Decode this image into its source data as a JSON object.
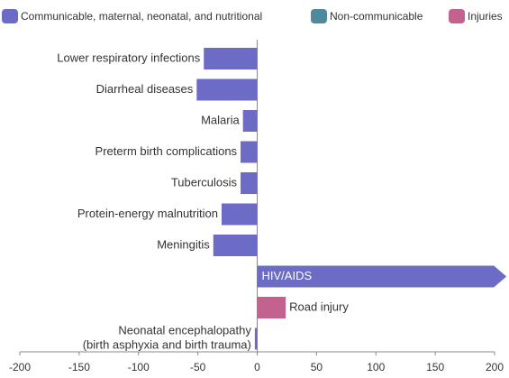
{
  "chart_data": {
    "type": "bar",
    "orientation": "horizontal",
    "categories": [
      "Lower respiratory infections",
      "Diarrheal diseases",
      "Malaria",
      "Preterm birth complications",
      "Tuberculosis",
      "Protein-energy malnutrition",
      "Meningitis",
      "HIV/AIDS",
      "Road injury",
      [
        "Neonatal encephalopathy",
        "(birth asphyxia and birth trauma)"
      ]
    ],
    "series": [
      {
        "name": "Communicable, maternal, neonatal, and nutritional",
        "color": "#6c6cc6",
        "values": [
          -45,
          -51,
          -12,
          -14,
          -14,
          -30,
          -37,
          210,
          null,
          -2
        ]
      },
      {
        "name": "Non-communicable",
        "color": "#4f8a9c",
        "values": [
          null,
          null,
          null,
          null,
          null,
          null,
          null,
          null,
          null,
          null
        ]
      },
      {
        "name": "Injuries",
        "color": "#c4628f",
        "values": [
          null,
          null,
          null,
          null,
          null,
          null,
          null,
          null,
          24,
          null
        ]
      }
    ],
    "xlim": [
      -200,
      200
    ],
    "xticks": [
      -200,
      -150,
      -100,
      -50,
      0,
      50,
      100,
      150,
      200
    ]
  }
}
